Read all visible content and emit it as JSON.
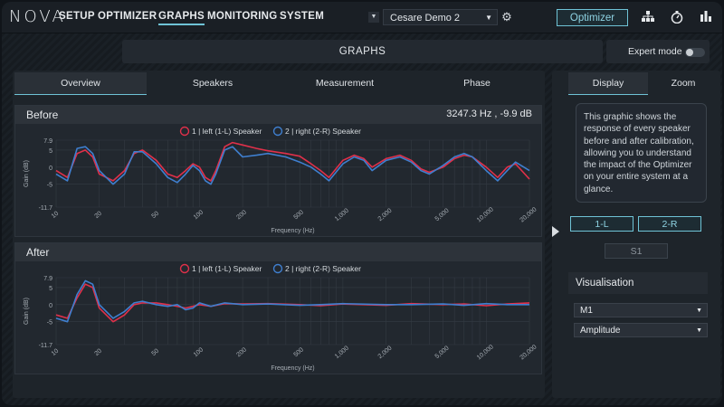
{
  "app": {
    "logo": "NOVA"
  },
  "nav": {
    "items": [
      {
        "label": "SETUP"
      },
      {
        "label": "OPTIMIZER"
      },
      {
        "label": "GRAPHS",
        "active": true
      },
      {
        "label": "MONITORING"
      },
      {
        "label": "SYSTEM"
      }
    ]
  },
  "preset": {
    "value": "Cesare Demo 2"
  },
  "optimizer_button": "Optimizer",
  "top_icons": [
    "network-icon",
    "stopwatch-icon",
    "bars-icon"
  ],
  "page_title": "GRAPHS",
  "expert_mode": {
    "label": "Expert mode",
    "enabled": false
  },
  "tabs": [
    {
      "label": "Overview",
      "active": true
    },
    {
      "label": "Speakers"
    },
    {
      "label": "Measurement"
    },
    {
      "label": "Phase"
    }
  ],
  "before": {
    "title": "Before",
    "readout": "3247.3 Hz , -9.9 dB"
  },
  "after": {
    "title": "After"
  },
  "chart_common": {
    "legend": [
      "1 | left (1-L) Speaker",
      "2 | right (2-R) Speaker"
    ],
    "xlabel": "Frequency (Hz)",
    "ylabel": "Gain (dB)",
    "yticks": [
      "7.9",
      "5",
      "0",
      "-5",
      "-11.7"
    ],
    "xticks": [
      "10",
      "20",
      "50",
      "100",
      "200",
      "500",
      "1,000",
      "2,000",
      "5,000",
      "10,000",
      "20,000"
    ]
  },
  "chart_data": [
    {
      "type": "line",
      "title": "Before",
      "xlabel": "Frequency (Hz)",
      "ylabel": "Gain (dB)",
      "x_scale": "log",
      "xlim": [
        10,
        20000
      ],
      "ylim": [
        -11.7,
        7.9
      ],
      "x": [
        10,
        12,
        14,
        16,
        18,
        20,
        25,
        30,
        35,
        40,
        50,
        60,
        70,
        80,
        90,
        100,
        110,
        120,
        130,
        150,
        170,
        200,
        250,
        300,
        400,
        500,
        600,
        700,
        800,
        1000,
        1200,
        1400,
        1600,
        2000,
        2500,
        3000,
        3500,
        4000,
        5000,
        6000,
        7000,
        8000,
        10000,
        12000,
        14000,
        16000,
        20000
      ],
      "series": [
        {
          "name": "1 | left (1-L) Speaker",
          "color": "#e0304a",
          "values": [
            -1,
            -3,
            4,
            5,
            3,
            -2,
            -4,
            -1,
            4,
            5,
            2,
            -2,
            -3,
            -1,
            1,
            0,
            -3,
            -4,
            -1,
            6,
            7.2,
            6.5,
            5.5,
            4.8,
            4,
            3.2,
            1,
            -1,
            -3,
            2,
            3.5,
            2.5,
            0,
            2.5,
            3.5,
            2,
            -0.5,
            -1.5,
            0,
            2.5,
            3.5,
            3,
            0,
            -3,
            0,
            1,
            -3.5
          ]
        },
        {
          "name": "2 | right (2-R) Speaker",
          "color": "#3f7fcf",
          "values": [
            -2,
            -4,
            5.5,
            6,
            4,
            -1,
            -5,
            -2,
            4.5,
            4.5,
            1,
            -3,
            -4.5,
            -2,
            0.5,
            -1,
            -4,
            -5,
            -2,
            5,
            6,
            3,
            3.5,
            4,
            3,
            1.5,
            0,
            -2,
            -4,
            1,
            3,
            2,
            -1,
            2,
            3,
            1.5,
            -1,
            -2,
            0.5,
            3,
            4,
            3,
            -1,
            -4,
            -1,
            1.5,
            -1
          ]
        }
      ]
    },
    {
      "type": "line",
      "title": "After",
      "xlabel": "Frequency (Hz)",
      "ylabel": "Gain (dB)",
      "x_scale": "log",
      "xlim": [
        10,
        20000
      ],
      "ylim": [
        -11.7,
        7.9
      ],
      "x": [
        10,
        12,
        14,
        16,
        18,
        20,
        25,
        30,
        35,
        40,
        50,
        60,
        70,
        80,
        90,
        100,
        120,
        150,
        200,
        300,
        500,
        700,
        1000,
        2000,
        3000,
        5000,
        7000,
        10000,
        14000,
        20000
      ],
      "series": [
        {
          "name": "1 | left (1-L) Speaker",
          "color": "#e0304a",
          "values": [
            -3,
            -4,
            2,
            6,
            5,
            -1,
            -5,
            -3,
            0,
            0.5,
            0.5,
            0,
            -0.5,
            -1,
            -0.5,
            0,
            -0.5,
            0.3,
            0.2,
            0.3,
            0,
            -0.3,
            0.2,
            -0.2,
            0.3,
            0,
            0.2,
            -0.3,
            0.2,
            0.5
          ]
        },
        {
          "name": "2 | right (2-R) Speaker",
          "color": "#3f7fcf",
          "values": [
            -4,
            -5,
            3,
            7,
            6,
            0,
            -4,
            -2,
            0.5,
            1,
            0,
            -0.5,
            0,
            -1.5,
            -1,
            0.5,
            -0.5,
            0.5,
            0,
            0.2,
            -0.2,
            0,
            0.3,
            0,
            0,
            0.2,
            -0.2,
            0.3,
            0,
            0
          ]
        }
      ]
    }
  ],
  "side": {
    "tabs": [
      {
        "label": "Display",
        "active": true
      },
      {
        "label": "Zoom"
      }
    ],
    "info": "This graphic shows the response of every speaker before and after calibration, allowing you to understand the impact of the Optimizer on your entire system at a glance.",
    "channels": [
      {
        "label": "1-L",
        "active": true
      },
      {
        "label": "2-R",
        "active": true
      },
      {
        "label": "S1",
        "active": false
      }
    ],
    "visualisation": "Visualisation",
    "select1": "M1",
    "select2": "Amplitude"
  }
}
